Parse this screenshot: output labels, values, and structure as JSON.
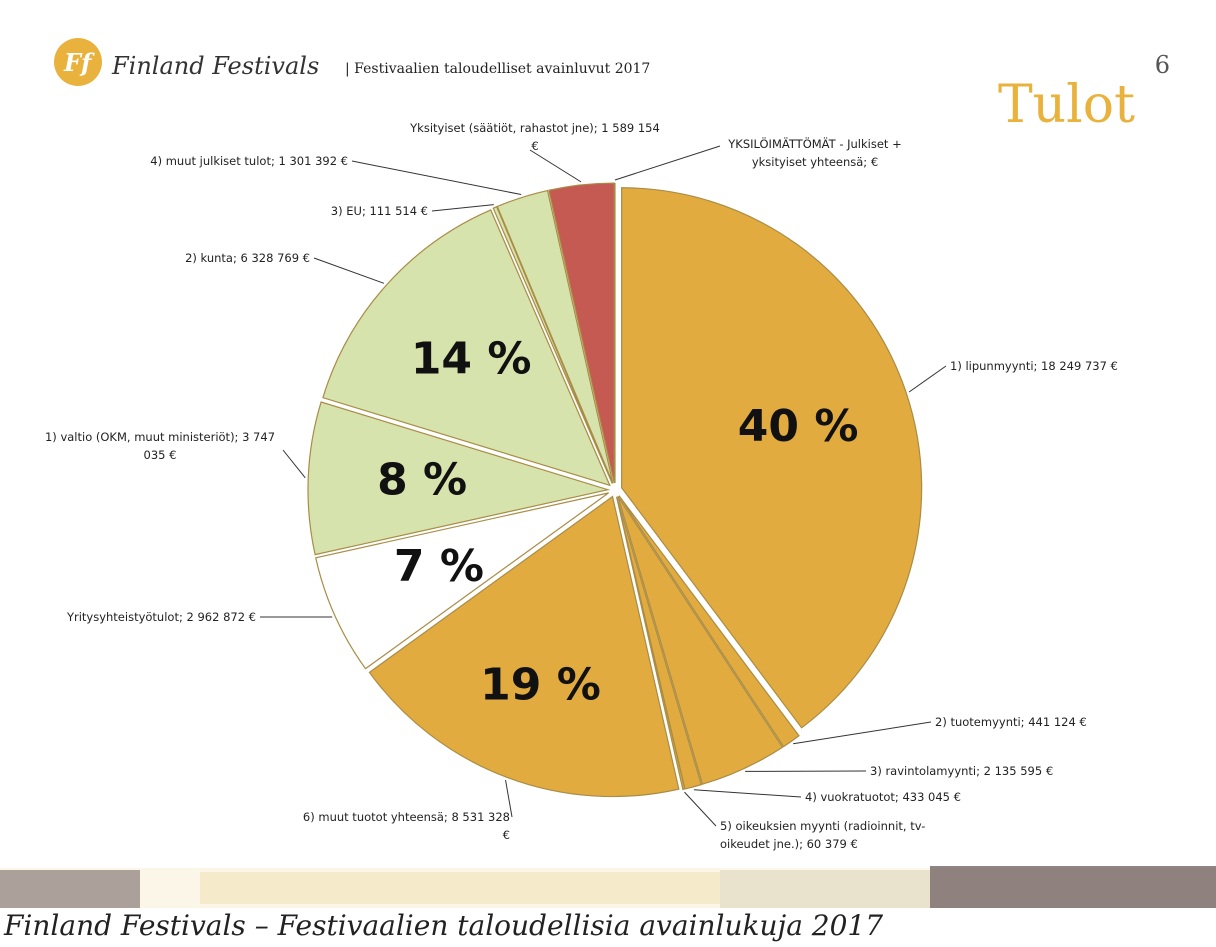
{
  "header": {
    "brand": "Finland Festivals",
    "subtitle": "| Festivaalien taloudelliset avainluvut 2017",
    "heading": "Tulot",
    "page_number": "6"
  },
  "chart_data": {
    "type": "pie",
    "categories": [
      "1) lipunmyynti; 18 249 737 €",
      "2) tuotemyynti;  441 124 €",
      "3) ravintolamyynti; 2 135 595 €",
      "4) vuokratuotot;  433 045 €",
      "5) oikeuksien myynti (radioinnit, tv-oikeudet jne.);  60 379 €",
      "6) muut tuotot yhteensä; 8 531 328 €",
      "Yritysyhteistyötulot; 2 962 872 €",
      "1) valtio (OKM, muut ministeriöt); 3 747 035 €",
      "2) kunta; 6 328 769 €",
      "3) EU;  111 514 €",
      "4) muut julkiset tulot; 1 301 392 €",
      "Yksityiset (säätiöt, rahastot jne); 1 589 154 €",
      "YKSILÖIMÄTTÖMÄT - Julkiset + yksityiset yhteensä;   €"
    ],
    "values": [
      39.8,
      1.0,
      4.7,
      0.9,
      0.1,
      18.6,
      6.5,
      8.2,
      13.8,
      0.2,
      2.8,
      3.5,
      0
    ],
    "value_labels": [
      "40 %",
      null,
      null,
      null,
      null,
      "19 %",
      "7 %",
      "8 %",
      "14 %",
      null,
      null,
      null,
      null
    ],
    "colors": [
      "#e2ab3f",
      "#e2ab3f",
      "#e2ab3f",
      "#e2ab3f",
      "#e2ab3f",
      "#e2ab3f",
      "#ffffff",
      "#d7e3ac",
      "#d7e3ac",
      "#d7e3ac",
      "#d7e3ac",
      "#c45a52",
      "#c45a52"
    ]
  },
  "footer": {
    "text": "Finland Festivals – Festivaalien taloudellisia avainlukuja 2017"
  }
}
